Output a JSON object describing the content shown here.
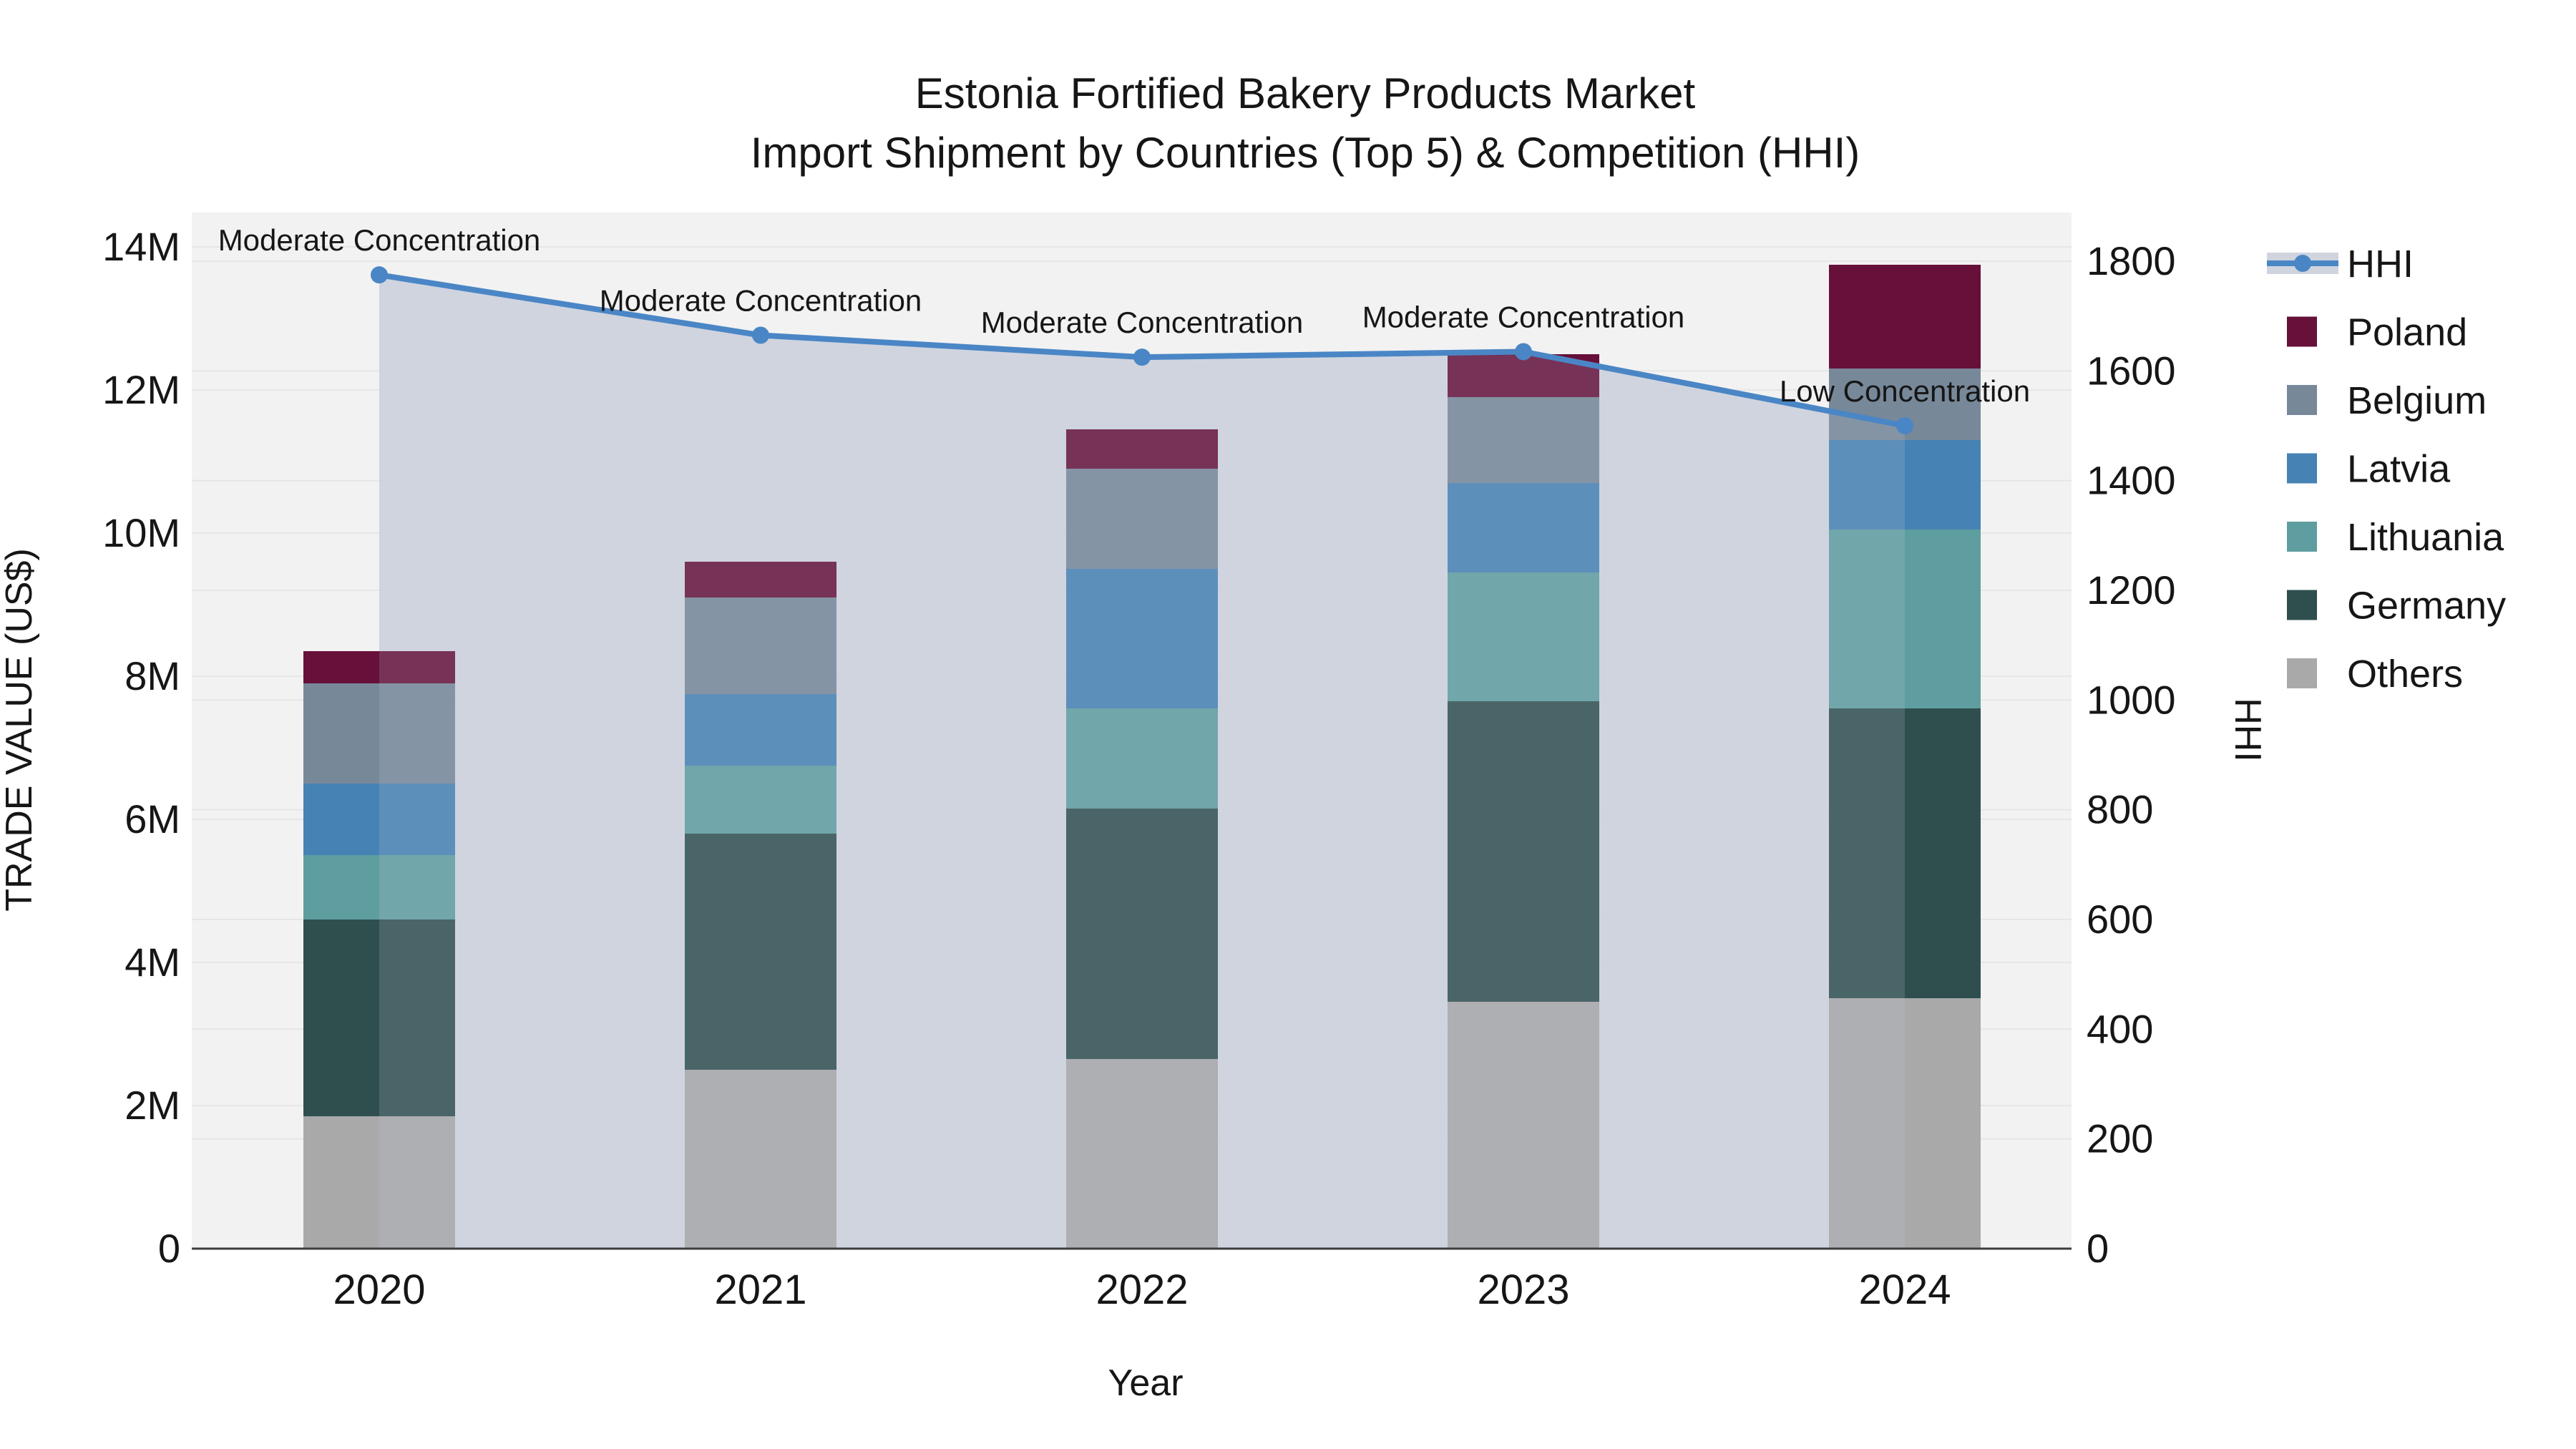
{
  "title": {
    "line1": "Estonia Fortified Bakery Products Market",
    "line2": "Import Shipment by Countries (Top 5) & Competition (HHI)"
  },
  "axes": {
    "x": {
      "title": "Year",
      "categories": [
        "2020",
        "2021",
        "2022",
        "2023",
        "2024"
      ]
    },
    "y_left": {
      "title": "TRADE VALUE (US$)",
      "tick_labels": [
        "0",
        "2M",
        "4M",
        "6M",
        "8M",
        "10M",
        "12M",
        "14M"
      ],
      "tick_values_musd": [
        0,
        2,
        4,
        6,
        8,
        10,
        12,
        14
      ]
    },
    "y_right": {
      "title": "HHI",
      "tick_values": [
        0,
        200,
        400,
        600,
        800,
        1000,
        1200,
        1400,
        1600,
        1800
      ]
    }
  },
  "chart_data": {
    "type": "combo_stacked_bar_line",
    "title": "Estonia Fortified Bakery Products Market — Import Shipment by Countries (Top 5) & Competition (HHI)",
    "categories": [
      "2020",
      "2021",
      "2022",
      "2023",
      "2024"
    ],
    "bar_unit": "US$ millions (left axis, TRADE VALUE US$)",
    "bar_stack_order_bottom_to_top": [
      "Others",
      "Germany",
      "Lithuania",
      "Latvia",
      "Belgium",
      "Poland"
    ],
    "bar_series": [
      {
        "name": "Others",
        "color": "#A9A9A9",
        "values": [
          1.85,
          2.5,
          2.65,
          3.45,
          3.5
        ]
      },
      {
        "name": "Germany",
        "color": "#2F4F4F",
        "values": [
          2.75,
          3.3,
          3.5,
          4.2,
          4.05
        ]
      },
      {
        "name": "Lithuania",
        "color": "#5F9EA0",
        "values": [
          0.9,
          0.95,
          1.4,
          1.8,
          2.5
        ]
      },
      {
        "name": "Latvia",
        "color": "#4682B4",
        "values": [
          1.0,
          1.0,
          1.95,
          1.25,
          1.25
        ]
      },
      {
        "name": "Belgium",
        "color": "#778899",
        "values": [
          1.4,
          1.35,
          1.4,
          1.2,
          1.0
        ]
      },
      {
        "name": "Poland",
        "color": "#66103A",
        "values": [
          0.45,
          0.5,
          0.55,
          0.6,
          1.45
        ]
      }
    ],
    "bar_totals_musd": [
      8.35,
      9.6,
      11.45,
      12.5,
      13.75
    ],
    "line_series": {
      "name": "HHI",
      "color": "#4A86C5",
      "area_fill": "#CFD4DE",
      "axis": "right",
      "values": [
        1775,
        1665,
        1625,
        1635,
        1500
      ]
    },
    "annotations": [
      {
        "category": "2020",
        "text": "Moderate Concentration"
      },
      {
        "category": "2021",
        "text": "Moderate Concentration"
      },
      {
        "category": "2022",
        "text": "Moderate Concentration"
      },
      {
        "category": "2023",
        "text": "Moderate Concentration"
      },
      {
        "category": "2024",
        "text": "Low Concentration"
      }
    ],
    "ylim_left_musd": [
      0,
      14
    ],
    "ylim_right": [
      0,
      1800
    ],
    "grid": true,
    "legend_position": "right"
  },
  "legend": {
    "items": [
      {
        "label": "HHI",
        "type": "line",
        "color": "#4A86C5"
      },
      {
        "label": "Poland",
        "type": "square",
        "color": "#66103A"
      },
      {
        "label": "Belgium",
        "type": "square",
        "color": "#778899"
      },
      {
        "label": "Latvia",
        "type": "square",
        "color": "#4682B4"
      },
      {
        "label": "Lithuania",
        "type": "square",
        "color": "#5F9EA0"
      },
      {
        "label": "Germany",
        "type": "square",
        "color": "#2F4F4F"
      },
      {
        "label": "Others",
        "type": "square",
        "color": "#A9A9A9"
      }
    ]
  },
  "colors": {
    "plot_background": "#F2F2F2",
    "gridline": "#E6E6E6",
    "axis_line": "#3C3C3C",
    "hhi_line": "#4A86C5",
    "hhi_area": "#CFD4DE"
  }
}
